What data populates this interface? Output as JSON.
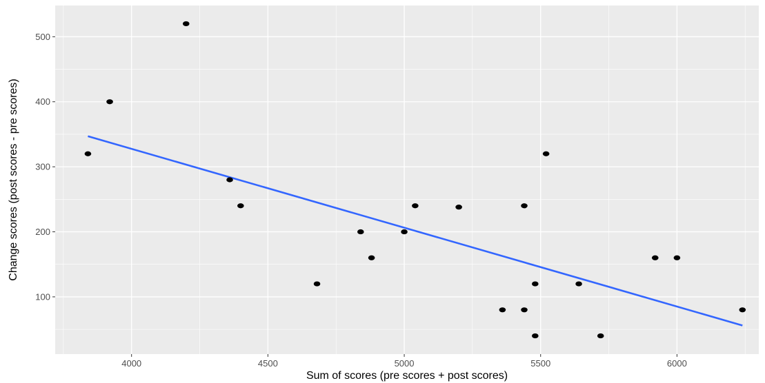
{
  "chart_data": {
    "type": "scatter",
    "xlabel": "Sum of scores (pre scores + post scores)",
    "ylabel": "Change scores (post scores - pre scores)",
    "xlim": [
      3720,
      6300
    ],
    "ylim": [
      12,
      548
    ],
    "x_ticks": [
      4000,
      4500,
      5000,
      5500,
      6000
    ],
    "y_ticks": [
      100,
      200,
      300,
      400,
      500
    ],
    "x_tick_labels": [
      "4000",
      "4500",
      "5000",
      "5500",
      "6000"
    ],
    "y_tick_labels": [
      "100",
      "200",
      "300",
      "400",
      "500"
    ],
    "grid": true,
    "points": [
      {
        "x": 3840,
        "y": 320
      },
      {
        "x": 3920,
        "y": 400
      },
      {
        "x": 4200,
        "y": 520
      },
      {
        "x": 4360,
        "y": 280
      },
      {
        "x": 4400,
        "y": 240
      },
      {
        "x": 4680,
        "y": 120
      },
      {
        "x": 4840,
        "y": 200
      },
      {
        "x": 4880,
        "y": 160
      },
      {
        "x": 5000,
        "y": 200
      },
      {
        "x": 5040,
        "y": 240
      },
      {
        "x": 5200,
        "y": 238
      },
      {
        "x": 5360,
        "y": 80
      },
      {
        "x": 5440,
        "y": 240
      },
      {
        "x": 5440,
        "y": 80
      },
      {
        "x": 5480,
        "y": 120
      },
      {
        "x": 5480,
        "y": 40
      },
      {
        "x": 5520,
        "y": 320
      },
      {
        "x": 5640,
        "y": 120
      },
      {
        "x": 5720,
        "y": 40
      },
      {
        "x": 5920,
        "y": 160
      },
      {
        "x": 6000,
        "y": 160
      },
      {
        "x": 6240,
        "y": 80
      }
    ],
    "trend_line": {
      "x": [
        3840,
        6240
      ],
      "y": [
        347,
        56
      ]
    },
    "colors": {
      "panel": "#ebebeb",
      "grid_major": "#ffffff",
      "points": "#000000",
      "trend": "#3366ff"
    }
  }
}
